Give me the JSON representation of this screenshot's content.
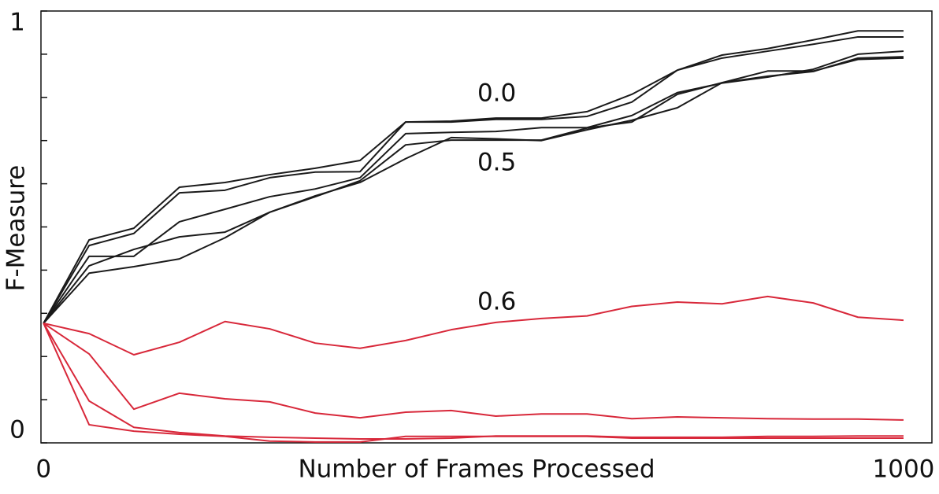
{
  "chart_data": {
    "type": "line",
    "xlabel": "Number of Frames Processed",
    "ylabel": "F-Measure",
    "x": [
      0,
      53,
      105,
      158,
      211,
      263,
      316,
      368,
      421,
      474,
      526,
      579,
      632,
      684,
      737,
      789,
      842,
      895,
      947,
      1000
    ],
    "series": [
      {
        "color": "#1a1a1a",
        "values": [
          0.277,
          0.47,
          0.497,
          0.592,
          0.603,
          0.621,
          0.636,
          0.654,
          0.743,
          0.745,
          0.752,
          0.752,
          0.767,
          0.807,
          0.863,
          0.898,
          0.913,
          0.933,
          0.954,
          0.954
        ]
      },
      {
        "color": "#1a1a1a",
        "values": [
          0.277,
          0.457,
          0.485,
          0.579,
          0.585,
          0.614,
          0.627,
          0.628,
          0.743,
          0.743,
          0.749,
          0.749,
          0.756,
          0.789,
          0.863,
          0.891,
          0.907,
          0.923,
          0.94,
          0.94
        ]
      },
      {
        "color": "#1a1a1a",
        "values": [
          0.277,
          0.432,
          0.432,
          0.512,
          0.541,
          0.57,
          0.588,
          0.614,
          0.716,
          0.719,
          0.721,
          0.73,
          0.73,
          0.758,
          0.811,
          0.833,
          0.847,
          0.865,
          0.9,
          0.907
        ]
      },
      {
        "color": "#1a1a1a",
        "values": [
          0.277,
          0.41,
          0.448,
          0.477,
          0.488,
          0.534,
          0.57,
          0.607,
          0.69,
          0.701,
          0.701,
          0.701,
          0.729,
          0.743,
          0.807,
          0.834,
          0.861,
          0.861,
          0.888,
          0.891
        ]
      },
      {
        "color": "#1a1a1a",
        "values": [
          0.277,
          0.393,
          0.408,
          0.426,
          0.475,
          0.534,
          0.572,
          0.603,
          0.658,
          0.707,
          0.704,
          0.7,
          0.725,
          0.747,
          0.776,
          0.834,
          0.849,
          0.86,
          0.891,
          0.894
        ]
      },
      {
        "color": "#d8283a",
        "values": [
          0.277,
          0.253,
          0.204,
          0.233,
          0.281,
          0.264,
          0.231,
          0.219,
          0.237,
          0.262,
          0.279,
          0.288,
          0.294,
          0.316,
          0.326,
          0.322,
          0.339,
          0.324,
          0.291,
          0.284
        ]
      },
      {
        "color": "#d8283a",
        "values": [
          0.277,
          0.206,
          0.078,
          0.115,
          0.102,
          0.095,
          0.069,
          0.058,
          0.071,
          0.075,
          0.062,
          0.067,
          0.067,
          0.056,
          0.06,
          0.058,
          0.056,
          0.055,
          0.055,
          0.053
        ]
      },
      {
        "color": "#d8283a",
        "values": [
          0.277,
          0.097,
          0.036,
          0.024,
          0.016,
          0.013,
          0.011,
          0.009,
          0.009,
          0.011,
          0.016,
          0.016,
          0.016,
          0.013,
          0.013,
          0.013,
          0.015,
          0.015,
          0.016,
          0.016
        ]
      },
      {
        "color": "#d8283a",
        "values": [
          0.277,
          0.042,
          0.027,
          0.02,
          0.015,
          0.004,
          0.002,
          0.002,
          0.015,
          0.015,
          0.015,
          0.015,
          0.015,
          0.011,
          0.011,
          0.011,
          0.011,
          0.011,
          0.011,
          0.011
        ]
      }
    ],
    "annotations": [
      {
        "text": "0.0",
        "x": 527,
        "y": 0.807
      },
      {
        "text": "0.5",
        "x": 527,
        "y": 0.647
      },
      {
        "text": "0.6",
        "x": 527,
        "y": 0.324
      }
    ],
    "xlim": [
      -3,
      1033
    ],
    "xticks": [
      0,
      1000
    ],
    "ylim": [
      0,
      1
    ],
    "yticks": [
      0,
      1
    ],
    "minor_yticks": [
      0.1,
      0.2,
      0.3,
      0.4,
      0.5,
      0.6,
      0.7,
      0.8,
      0.9
    ]
  }
}
